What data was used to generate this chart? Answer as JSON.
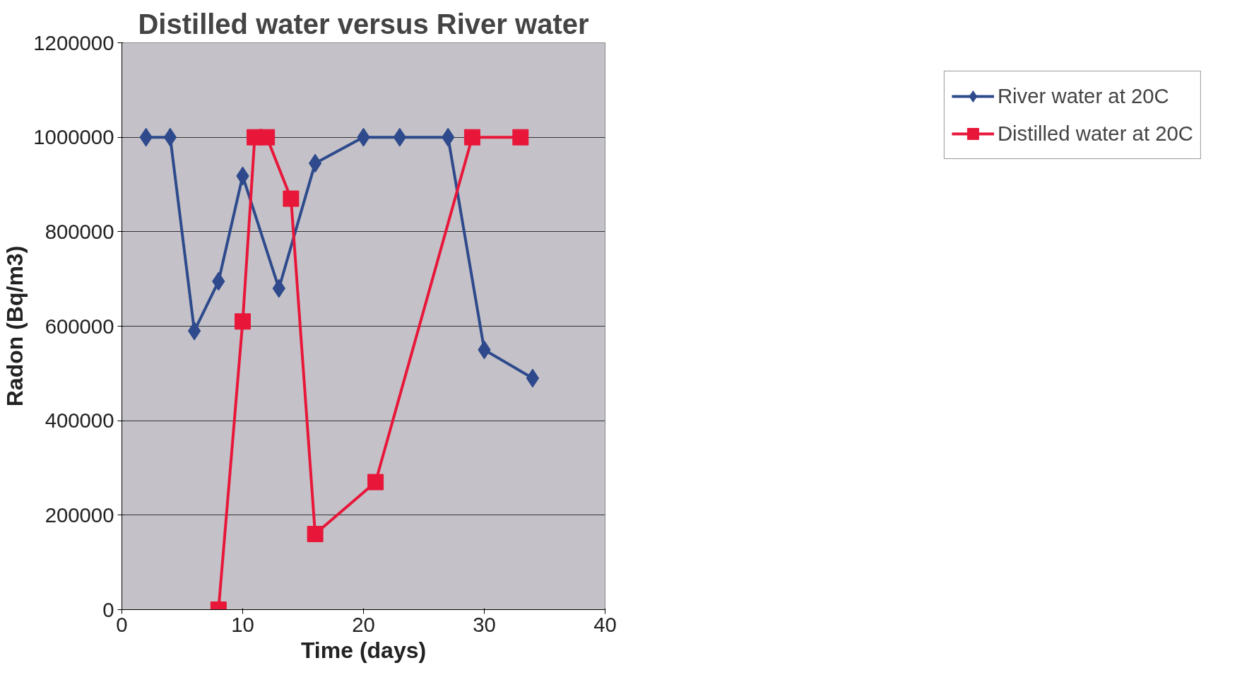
{
  "chart_data": {
    "type": "line",
    "title": "Distilled water versus River water",
    "xlabel": "Time (days)",
    "ylabel": "Radon (Bq/m3)",
    "xlim": [
      0,
      40
    ],
    "xticks": [
      0,
      10,
      20,
      30,
      40
    ],
    "ylim": [
      0,
      1200000
    ],
    "yticks": [
      0,
      200000,
      400000,
      600000,
      800000,
      1000000,
      1200000
    ],
    "grid": "y",
    "legend": "right",
    "line_style": "solid",
    "series": [
      {
        "name": "River water at 20C",
        "color": "#2e4a8c",
        "marker": "diamond",
        "x": [
          2,
          4,
          6,
          8,
          10,
          13,
          16,
          20,
          23,
          27,
          30,
          34
        ],
        "values": [
          1000000,
          1000000,
          590000,
          695000,
          918000,
          680000,
          945000,
          1000000,
          1000000,
          1000000,
          550000,
          490000
        ]
      },
      {
        "name": "Distilled water at 20C",
        "color": "#e8173a",
        "marker": "square",
        "x": [
          8,
          10,
          11,
          12,
          14,
          16,
          21,
          29,
          33
        ],
        "values": [
          0,
          610000,
          1000000,
          1000000,
          870000,
          160000,
          270000,
          1000000,
          1000000
        ]
      }
    ]
  }
}
